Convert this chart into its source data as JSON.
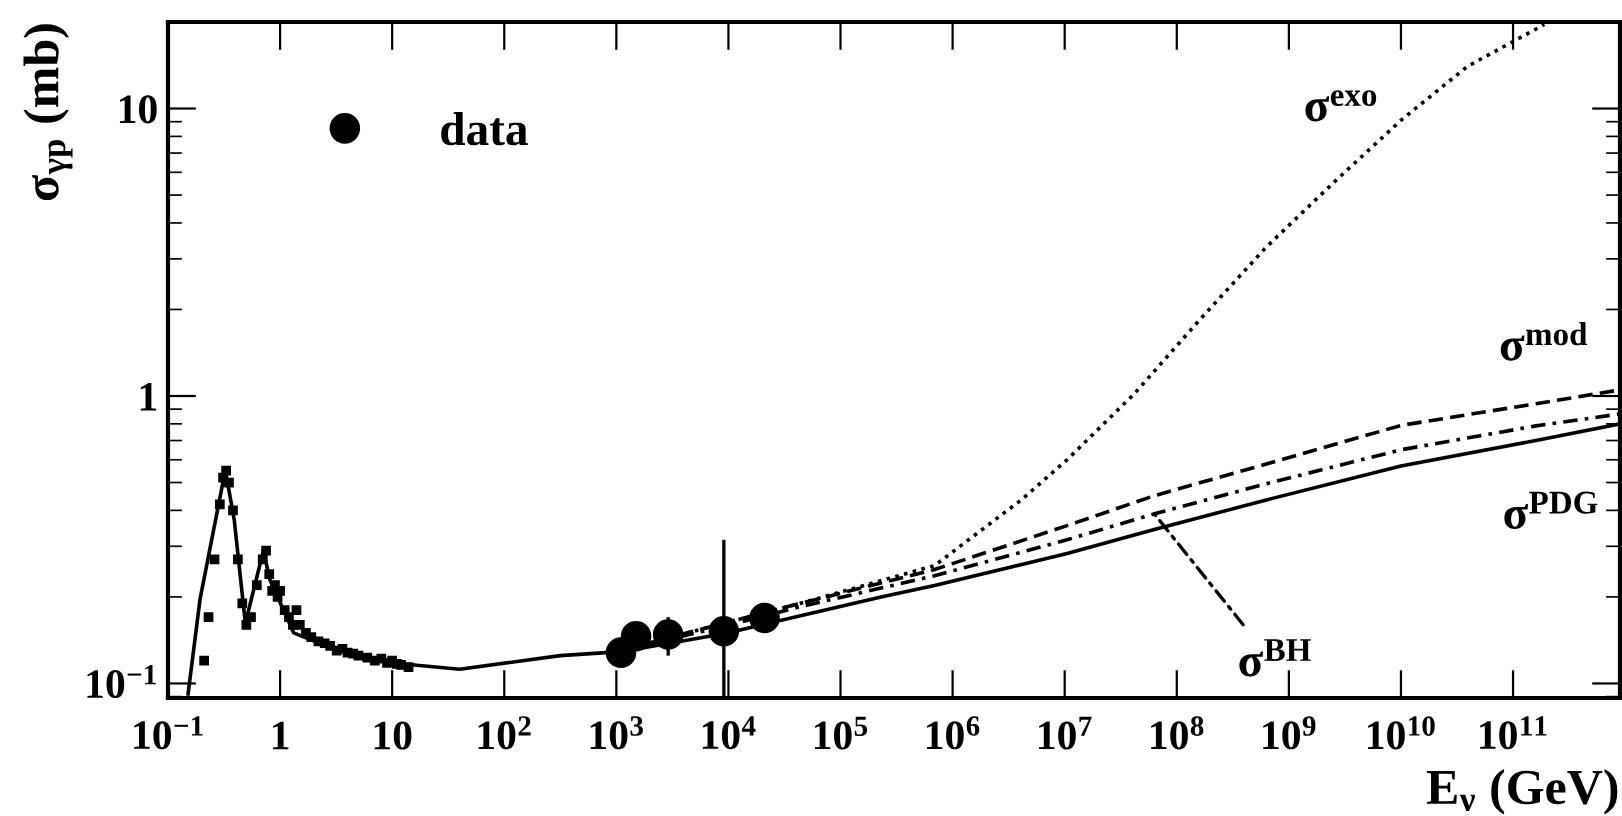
{
  "chart_data": {
    "type": "line",
    "xlabel": "E$_{ν}$ (GeV)",
    "ylabel": "σ$_{γp}$ (mb)",
    "log": "xy",
    "legend": "top left",
    "grid": false,
    "xlim": [
      0.1,
      900000000000.0
    ],
    "ylim": [
      0.089,
      20
    ],
    "xticks": [
      {
        "value": 0.1,
        "label": "10$^{−1}$"
      },
      1,
      10,
      {
        "value": 100,
        "label": "10$^{2}$"
      },
      {
        "value": 1000,
        "label": "10$^{3}$"
      },
      {
        "value": 10000,
        "label": "10$^{4}$"
      },
      {
        "value": 100000,
        "label": "10$^{5}$"
      },
      {
        "value": 1000000,
        "label": "10$^{6}$"
      },
      {
        "value": 10000000,
        "label": "10$^{7}$"
      },
      {
        "value": 100000000,
        "label": "10$^{8}$"
      },
      {
        "value": 1000000000,
        "label": "10$^{9}$"
      },
      {
        "value": 10000000000,
        "label": "10$^{10}$"
      },
      {
        "value": 100000000000,
        "label": "10$^{11}$"
      }
    ],
    "yticks": [
      {
        "value": 0.1,
        "label": "10$^{−1}$"
      },
      1,
      10
    ],
    "annotations": [
      {
        "text": "σ$^{exo}$",
        "x": 10000000000,
        "y": 9.1
      },
      {
        "text": "σ$^{mod}$",
        "x": 160000000000,
        "y": 0.94
      },
      {
        "text": "σ$^{PDG}$",
        "x": 160000000000,
        "y": 0.7
      },
      {
        "text": "σ$^{BH}$",
        "x": 63000000,
        "y": 0.389
      }
    ],
    "series": [
      {
        "type": "scatter",
        "color": "#000000",
        "marker": "square",
        "x": [
          0.21,
          0.23,
          0.26,
          0.29,
          0.31,
          0.33,
          0.35,
          0.38,
          0.42,
          0.46,
          0.5,
          0.55,
          0.62,
          0.7,
          0.75,
          0.8,
          0.85,
          0.9,
          0.95,
          1.0,
          1.1,
          1.2,
          1.3,
          1.4,
          1.5,
          1.7,
          1.9,
          2.2,
          2.5,
          2.8,
          3.2,
          3.6,
          4,
          4.5,
          5,
          6,
          7,
          8,
          9,
          10,
          11,
          12,
          14
        ],
        "values": [
          0.12,
          0.17,
          0.27,
          0.42,
          0.52,
          0.55,
          0.5,
          0.4,
          0.27,
          0.19,
          0.16,
          0.17,
          0.22,
          0.27,
          0.29,
          0.24,
          0.21,
          0.22,
          0.2,
          0.21,
          0.18,
          0.17,
          0.16,
          0.18,
          0.16,
          0.15,
          0.145,
          0.14,
          0.138,
          0.135,
          0.13,
          0.132,
          0.128,
          0.127,
          0.125,
          0.123,
          0.12,
          0.122,
          0.118,
          0.12,
          0.117,
          0.116,
          0.114
        ]
      },
      {
        "type": "scatter",
        "name": "data",
        "color": "#000000",
        "marker": "circle",
        "x": [
          1100,
          1500,
          2900,
          9100,
          21000
        ],
        "values": [
          0.128,
          0.146,
          0.148,
          0.152,
          0.169
        ],
        "errors": [
          [
            0.115,
            0.143
          ],
          null,
          [
            0.125,
            0.17
          ],
          [
            0.09,
            0.316
          ],
          null
        ]
      },
      {
        "color": "#000000",
        "line_style": "dotted",
        "x": [
          1000,
          9100,
          44000,
          690000,
          4100000,
          10500000,
          42000000,
          160000000,
          630000000,
          2600000000,
          10000000000,
          39000000000,
          190000000000
        ],
        "values": [
          0.129,
          0.162,
          0.19,
          0.257,
          0.435,
          0.6,
          1.02,
          1.84,
          3.3,
          5.6,
          9.1,
          14.0,
          19.6
        ]
      },
      {
        "color": "#000000",
        "line_style": "dashed",
        "x": [
          1000,
          9100,
          44000,
          690000,
          10500000,
          63000000,
          630000000,
          10000000000,
          160000000000,
          900000000000
        ],
        "values": [
          0.129,
          0.162,
          0.19,
          0.249,
          0.354,
          0.45,
          0.58,
          0.79,
          0.94,
          1.05
        ]
      },
      {
        "color": "#000000",
        "line_style": "solid",
        "x": [
          0.151,
          0.193,
          0.325,
          0.39,
          0.49,
          0.71,
          0.81,
          1.32,
          2.6,
          9.6,
          40,
          316,
          1100,
          9100,
          44000,
          230000,
          690000,
          10500000,
          63000000,
          630000000,
          10000000000,
          160000000000,
          900000000000
        ],
        "values": [
          0.092,
          0.196,
          0.553,
          0.37,
          0.162,
          0.29,
          0.23,
          0.15,
          0.135,
          0.118,
          0.112,
          0.125,
          0.129,
          0.149,
          0.172,
          0.2,
          0.219,
          0.283,
          0.343,
          0.435,
          0.571,
          0.7,
          0.8
        ]
      },
      {
        "color": "#000000",
        "line_style": "dashdot",
        "x": [
          1000,
          9100,
          44000,
          690000,
          10500000,
          63000000,
          630000000,
          10000000000,
          160000000000,
          900000000000
        ],
        "values": [
          0.129,
          0.158,
          0.185,
          0.237,
          0.316,
          0.389,
          0.495,
          0.65,
          0.787,
          0.866
        ]
      }
    ]
  }
}
